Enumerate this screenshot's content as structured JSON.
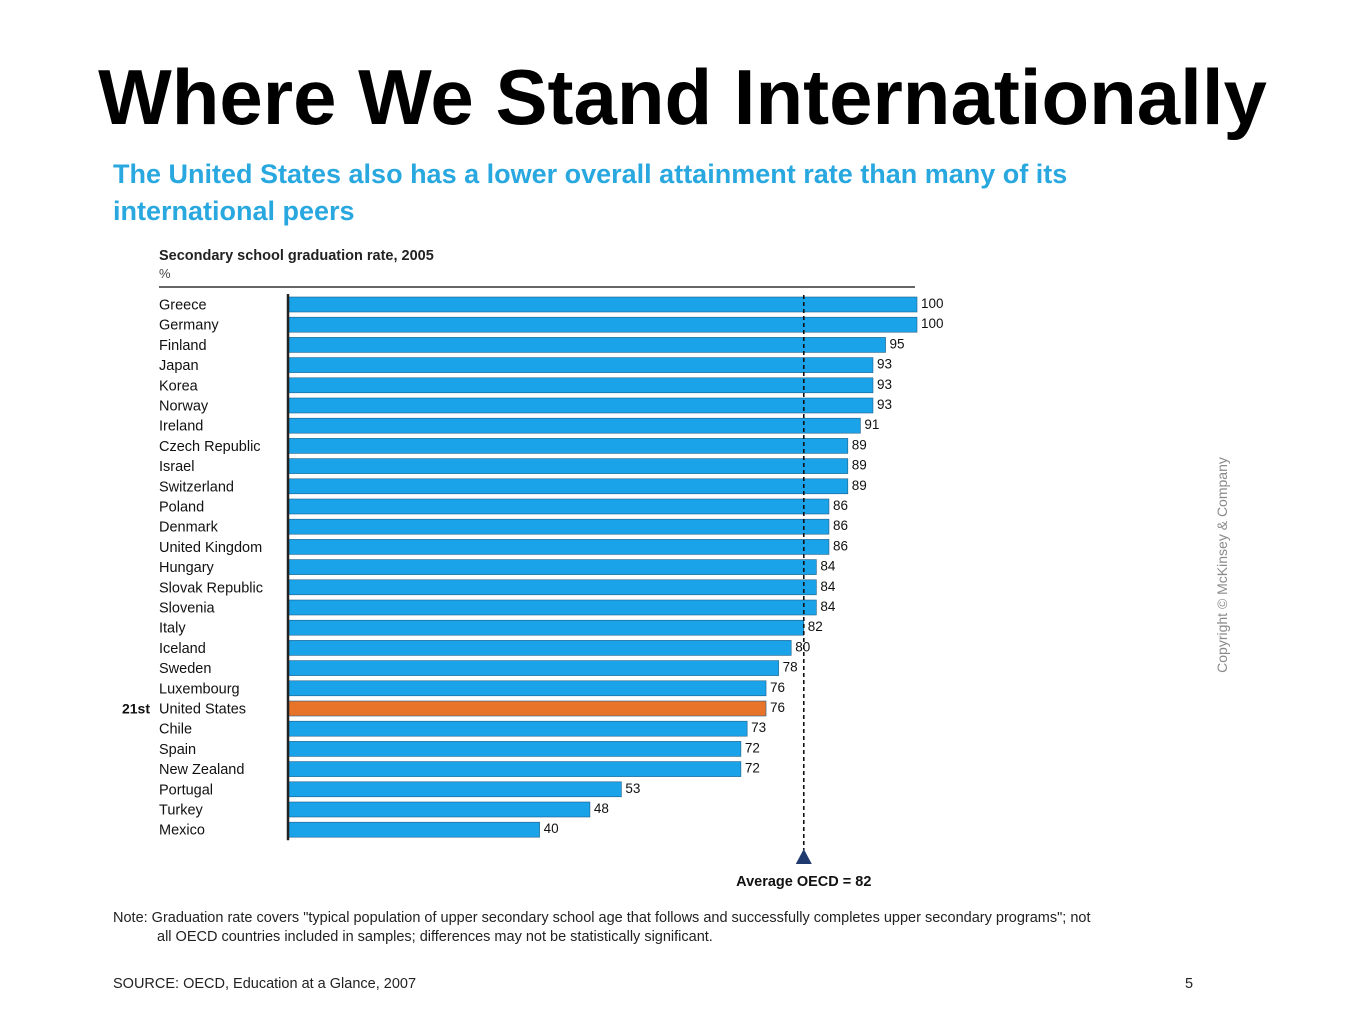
{
  "slide": {
    "title": "Where We Stand Internationally",
    "headline_line1": "The United States also has a lower overall attainment rate than many of its",
    "headline_line2": "international peers",
    "copyright": "Copyright © McKinsey & Company",
    "note_line1": "Note: Graduation rate covers \"typical population of upper secondary school age that follows and successfully completes upper secondary programs\"; not",
    "note_line2": "all OECD countries included in samples; differences may not be statistically significant.",
    "source": "SOURCE: OECD, Education at a Glance, 2007",
    "page_number": "5"
  },
  "colors": {
    "bar": "#1aa3e8",
    "highlight": "#e8742a",
    "bar_stroke": "#1d5f8a",
    "headline": "#29a8e0",
    "average_marker": "#1f3a6e"
  },
  "chart_data": {
    "type": "bar",
    "orientation": "horizontal",
    "title": "Secondary school graduation rate, 2005",
    "unit": "%",
    "xlim": [
      0,
      100
    ],
    "grid": false,
    "categories": [
      "Greece",
      "Germany",
      "Finland",
      "Japan",
      "Korea",
      "Norway",
      "Ireland",
      "Czech Republic",
      "Israel",
      "Switzerland",
      "Poland",
      "Denmark",
      "United Kingdom",
      "Hungary",
      "Slovak Republic",
      "Slovenia",
      "Italy",
      "Iceland",
      "Sweden",
      "Luxembourg",
      "United States",
      "Chile",
      "Spain",
      "New Zealand",
      "Portugal",
      "Turkey",
      "Mexico"
    ],
    "values": [
      100,
      100,
      95,
      93,
      93,
      93,
      91,
      89,
      89,
      89,
      86,
      86,
      86,
      84,
      84,
      84,
      82,
      80,
      78,
      76,
      76,
      73,
      72,
      72,
      53,
      48,
      40
    ],
    "highlight_category": "United States",
    "highlight_rank": "21st",
    "average": {
      "value": 82,
      "label": "Average OECD = 82"
    }
  }
}
